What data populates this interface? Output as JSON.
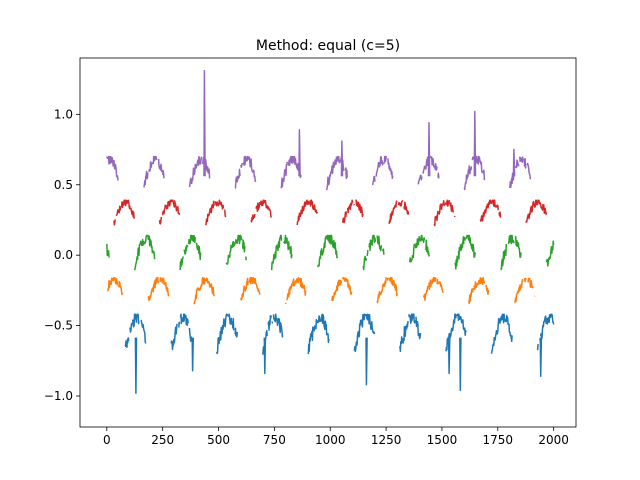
{
  "chart_data": {
    "type": "line",
    "title": "Method: equal (c=5)",
    "xlabel": "",
    "ylabel": "",
    "xlim": [
      -120,
      2100
    ],
    "ylim": [
      -1.22,
      1.4
    ],
    "grid": false,
    "legend": "none",
    "x_ticks": [
      0,
      250,
      500,
      750,
      1000,
      1250,
      1500,
      1750,
      2000
    ],
    "x_tick_labels": [
      "0",
      "250",
      "500",
      "750",
      "1000",
      "1250",
      "1500",
      "1750",
      "2000"
    ],
    "y_ticks": [
      -1.0,
      -0.5,
      0.0,
      0.5,
      1.0
    ],
    "y_tick_labels": [
      "−1.0",
      "−0.5",
      "0.0",
      "0.5",
      "1.0"
    ],
    "x_range": [
      0,
      2000
    ],
    "period": 205,
    "series": [
      {
        "color": "#1f77b4",
        "band": [
          -0.75,
          -0.42
        ],
        "phase": 0.6
      },
      {
        "color": "#ff7f0e",
        "band": [
          -0.38,
          -0.16
        ],
        "phase": 0.1
      },
      {
        "color": "#2ca02c",
        "band": [
          -0.15,
          0.14
        ],
        "phase": 0.4
      },
      {
        "color": "#d62728",
        "band": [
          0.18,
          0.39
        ],
        "phase": 0.85
      },
      {
        "color": "#9467bd",
        "band": [
          0.42,
          0.7
        ],
        "phase": 0.2
      }
    ],
    "spikes": [
      {
        "series": 0,
        "x": 128,
        "y": -0.98
      },
      {
        "series": 0,
        "x": 382,
        "y": -0.82
      },
      {
        "series": 0,
        "x": 705,
        "y": -0.84
      },
      {
        "series": 0,
        "x": 1160,
        "y": -0.92
      },
      {
        "series": 0,
        "x": 1530,
        "y": -0.84
      },
      {
        "series": 0,
        "x": 1580,
        "y": -0.96
      },
      {
        "series": 0,
        "x": 1940,
        "y": -0.86
      },
      {
        "series": 4,
        "x": 435,
        "y": 1.31
      },
      {
        "series": 4,
        "x": 860,
        "y": 0.89
      },
      {
        "series": 4,
        "x": 1440,
        "y": 0.94
      },
      {
        "series": 4,
        "x": 1645,
        "y": 1.02
      },
      {
        "series": 4,
        "x": 1050,
        "y": 0.81
      },
      {
        "series": 4,
        "x": 1820,
        "y": 0.75
      }
    ]
  }
}
